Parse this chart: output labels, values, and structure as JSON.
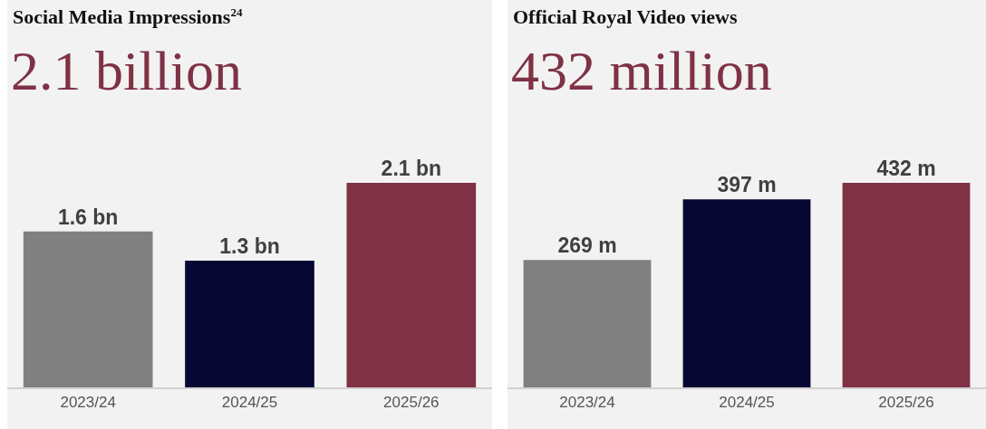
{
  "chart_data": [
    {
      "type": "bar",
      "title": "Social Media Impressions$^{24}$",
      "subtitle": "2.1 billion",
      "categories": [
        "2023/24",
        "2024/25",
        "2025/26"
      ],
      "values": [
        1.6,
        1.3,
        2.1
      ],
      "colors": [
        "#808080",
        "#060833",
        "#7f3245"
      ],
      "value_labels": [
        "1.6 bn",
        "1.3 bn",
        "2.1 bn"
      ]
    },
    {
      "type": "bar",
      "title": "Official Royal Video views",
      "subtitle": "432 million",
      "categories": [
        "2023/24",
        "2024/25",
        "2025/26"
      ],
      "values": [
        269,
        397,
        432
      ],
      "colors": [
        "#808080",
        "#060833",
        "#7f3245"
      ],
      "value_labels": [
        "269 m",
        "397 m",
        "432 m"
      ]
    }
  ]
}
